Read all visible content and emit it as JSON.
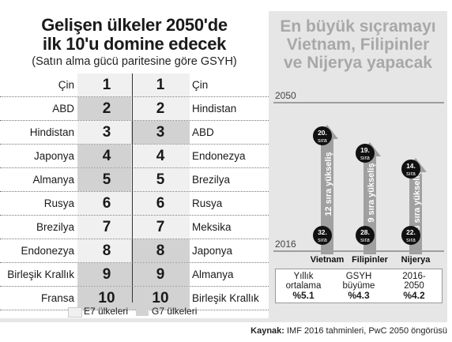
{
  "left": {
    "title_line1": "Gelişen ülkeler 2050'de",
    "title_line2": "ilk 10'u domine edecek",
    "subtitle": "(Satın alma gücü paritesine göre GSYH)",
    "rows": [
      {
        "left_country": "Çin",
        "left_rank": "1",
        "right_rank": "1",
        "right_country": "Çin",
        "left_group": "E7",
        "right_group": "E7"
      },
      {
        "left_country": "ABD",
        "left_rank": "2",
        "right_rank": "2",
        "right_country": "Hindistan",
        "left_group": "G7",
        "right_group": "E7"
      },
      {
        "left_country": "Hindistan",
        "left_rank": "3",
        "right_rank": "3",
        "right_country": "ABD",
        "left_group": "E7",
        "right_group": "G7"
      },
      {
        "left_country": "Japonya",
        "left_rank": "4",
        "right_rank": "4",
        "right_country": "Endonezya",
        "left_group": "G7",
        "right_group": "E7"
      },
      {
        "left_country": "Almanya",
        "left_rank": "5",
        "right_rank": "5",
        "right_country": "Brezilya",
        "left_group": "G7",
        "right_group": "E7"
      },
      {
        "left_country": "Rusya",
        "left_rank": "6",
        "right_rank": "6",
        "right_country": "Rusya",
        "left_group": "E7",
        "right_group": "E7"
      },
      {
        "left_country": "Brezilya",
        "left_rank": "7",
        "right_rank": "7",
        "right_country": "Meksika",
        "left_group": "E7",
        "right_group": "E7"
      },
      {
        "left_country": "Endonezya",
        "left_rank": "8",
        "right_rank": "8",
        "right_country": "Japonya",
        "left_group": "E7",
        "right_group": "G7"
      },
      {
        "left_country": "Birleşik Krallık",
        "left_rank": "9",
        "right_rank": "9",
        "right_country": "Almanya",
        "left_group": "G7",
        "right_group": "G7"
      },
      {
        "left_country": "Fransa",
        "left_rank": "10",
        "right_rank": "10",
        "right_country": "Birleşik Krallık",
        "left_group": "G7",
        "right_group": "G7"
      }
    ],
    "legend": {
      "e7_label": "E7 ülkeleri",
      "g7_label": "G7 ülkeleri",
      "e7_color": "#f0f0f0",
      "g7_color": "#d2d2d2"
    }
  },
  "right": {
    "title_line1": "En büyük sıçramayı",
    "title_line2": "Vietnam, Filipinler",
    "title_line3": "ve Nijerya yapacak",
    "year_top": "2050",
    "year_bottom": "2016",
    "arrow_color": "#a0a0a0",
    "arrows": [
      {
        "country": "Vietnam",
        "start_rank": "32.",
        "end_rank": "20.",
        "unit": "sıra",
        "jump": "12 sıra yükseliş",
        "growth_label1": "Yıllık",
        "growth_label2": "ortalama",
        "growth": "%5.1"
      },
      {
        "country": "Filipinler",
        "start_rank": "28.",
        "end_rank": "19.",
        "unit": "sıra",
        "jump": "9 sıra yükseliş",
        "growth_label1": "GSYH",
        "growth_label2": "büyüme",
        "growth": "%4.3"
      },
      {
        "country": "Nijerya",
        "start_rank": "22.",
        "end_rank": "14.",
        "unit": "sıra",
        "jump": "8 sıra yükseliş",
        "growth_label1": "2016-",
        "growth_label2": "2050",
        "growth": "%4.2"
      }
    ]
  },
  "source": {
    "prefix": "Kaynak:",
    "text": "IMF 2016 tahminleri, PwC 2050 öngörüsü"
  }
}
